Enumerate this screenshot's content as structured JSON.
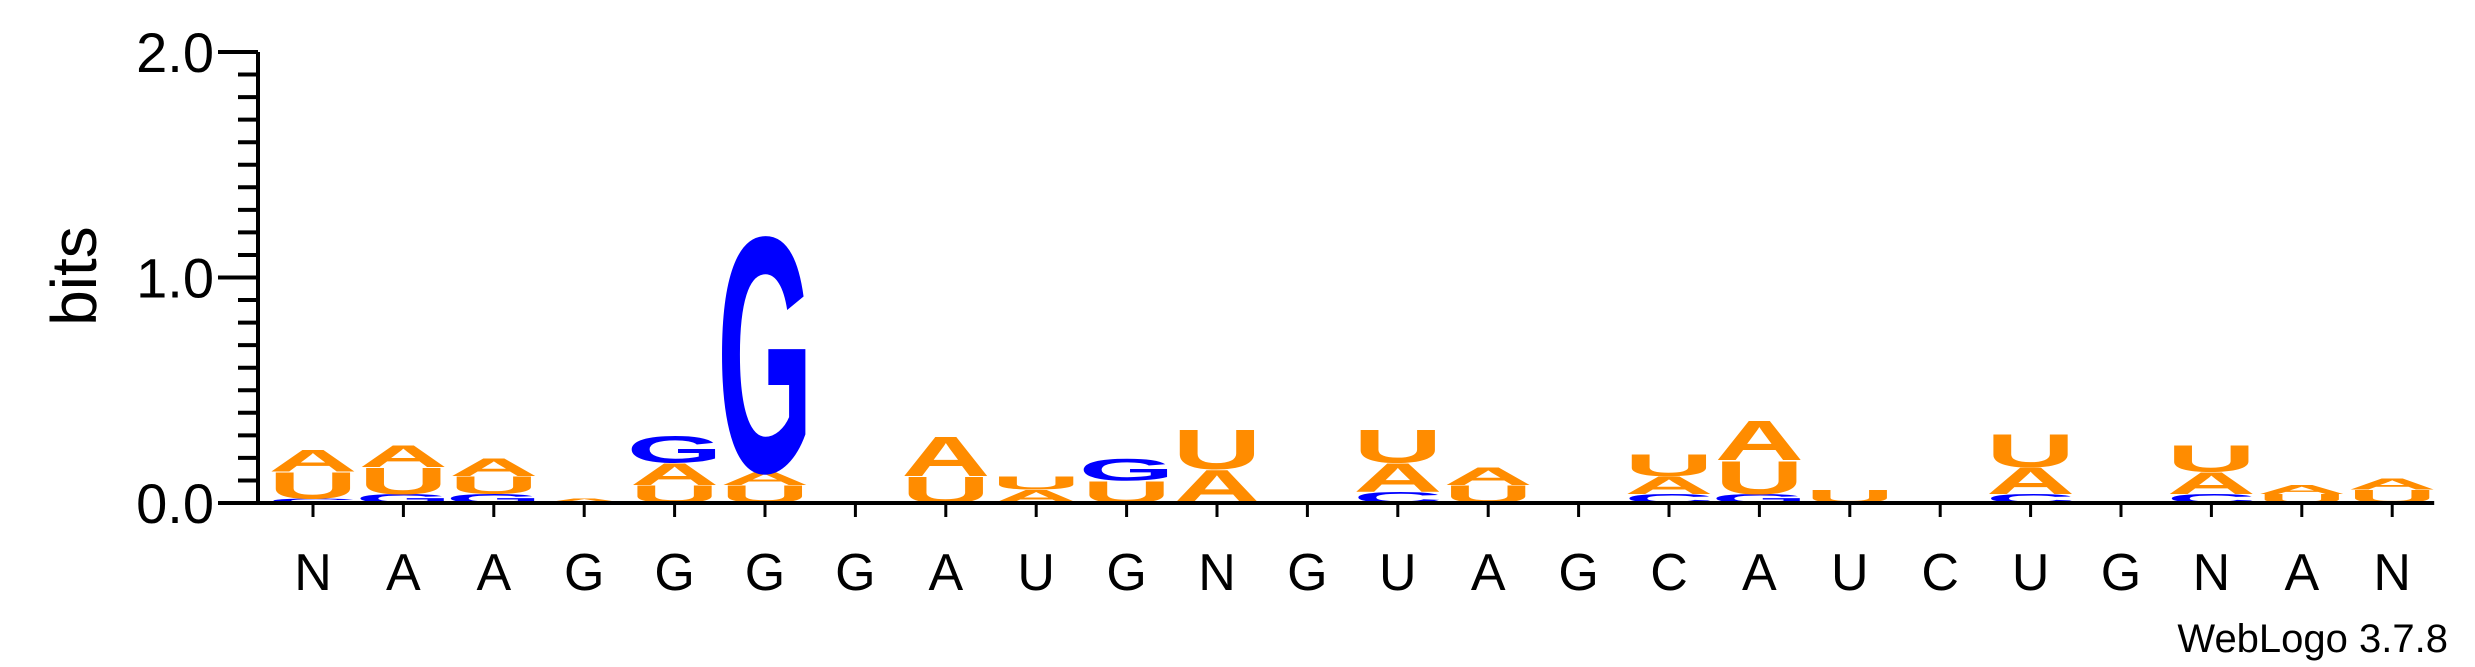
{
  "chart_data": {
    "type": "sequence-logo",
    "ylabel": "bits",
    "ylim": [
      0,
      2.0
    ],
    "yticks": [
      "0.0",
      "1.0",
      "2.0"
    ],
    "credit": "WebLogo 3.7.8",
    "colors": {
      "A": "#ff8c00",
      "U": "#ff8c00",
      "G": "#0000ff",
      "C": "#0000ff"
    },
    "positions": [
      {
        "label": "N",
        "stack": [
          {
            "letter": "C",
            "bits": 0.02
          },
          {
            "letter": "U",
            "bits": 0.12
          },
          {
            "letter": "A",
            "bits": 0.1
          }
        ]
      },
      {
        "label": "A",
        "stack": [
          {
            "letter": "G",
            "bits": 0.04
          },
          {
            "letter": "U",
            "bits": 0.12
          },
          {
            "letter": "A",
            "bits": 0.1
          }
        ]
      },
      {
        "label": "A",
        "stack": [
          {
            "letter": "G",
            "bits": 0.04
          },
          {
            "letter": "U",
            "bits": 0.08
          },
          {
            "letter": "A",
            "bits": 0.08
          }
        ]
      },
      {
        "label": "G",
        "stack": [
          {
            "letter": "A",
            "bits": 0.02
          }
        ]
      },
      {
        "label": "G",
        "stack": [
          {
            "letter": "U",
            "bits": 0.08
          },
          {
            "letter": "A",
            "bits": 0.1
          },
          {
            "letter": "G",
            "bits": 0.12
          }
        ]
      },
      {
        "label": "G",
        "stack": [
          {
            "letter": "U",
            "bits": 0.08
          },
          {
            "letter": "A",
            "bits": 0.06
          },
          {
            "letter": "G",
            "bits": 1.07
          }
        ]
      },
      {
        "label": "G",
        "stack": []
      },
      {
        "label": "A",
        "stack": [
          {
            "letter": "U",
            "bits": 0.12
          },
          {
            "letter": "A",
            "bits": 0.18
          }
        ]
      },
      {
        "label": "U",
        "stack": [
          {
            "letter": "A",
            "bits": 0.06
          },
          {
            "letter": "U",
            "bits": 0.06
          }
        ]
      },
      {
        "label": "G",
        "stack": [
          {
            "letter": "U",
            "bits": 0.1
          },
          {
            "letter": "G",
            "bits": 0.1
          }
        ]
      },
      {
        "label": "N",
        "stack": [
          {
            "letter": "A",
            "bits": 0.15
          },
          {
            "letter": "U",
            "bits": 0.18
          }
        ]
      },
      {
        "label": "G",
        "stack": []
      },
      {
        "label": "U",
        "stack": [
          {
            "letter": "C",
            "bits": 0.05
          },
          {
            "letter": "A",
            "bits": 0.13
          },
          {
            "letter": "U",
            "bits": 0.15
          }
        ]
      },
      {
        "label": "A",
        "stack": [
          {
            "letter": "U",
            "bits": 0.08
          },
          {
            "letter": "A",
            "bits": 0.08
          }
        ]
      },
      {
        "label": "G",
        "stack": []
      },
      {
        "label": "C",
        "stack": [
          {
            "letter": "C",
            "bits": 0.04
          },
          {
            "letter": "A",
            "bits": 0.08
          },
          {
            "letter": "U",
            "bits": 0.1
          }
        ]
      },
      {
        "label": "A",
        "stack": [
          {
            "letter": "G",
            "bits": 0.04
          },
          {
            "letter": "U",
            "bits": 0.15
          },
          {
            "letter": "A",
            "bits": 0.18
          }
        ]
      },
      {
        "label": "U",
        "stack": [
          {
            "letter": "U",
            "bits": 0.06
          }
        ]
      },
      {
        "label": "C",
        "stack": []
      },
      {
        "label": "U",
        "stack": [
          {
            "letter": "C",
            "bits": 0.04
          },
          {
            "letter": "A",
            "bits": 0.12
          },
          {
            "letter": "U",
            "bits": 0.15
          }
        ]
      },
      {
        "label": "G",
        "stack": []
      },
      {
        "label": "N",
        "stack": [
          {
            "letter": "C",
            "bits": 0.04
          },
          {
            "letter": "A",
            "bits": 0.1
          },
          {
            "letter": "U",
            "bits": 0.12
          }
        ]
      },
      {
        "label": "A",
        "stack": [
          {
            "letter": "U",
            "bits": 0.04
          },
          {
            "letter": "A",
            "bits": 0.04
          }
        ]
      },
      {
        "label": "N",
        "stack": [
          {
            "letter": "U",
            "bits": 0.06
          },
          {
            "letter": "A",
            "bits": 0.05
          }
        ]
      }
    ]
  }
}
